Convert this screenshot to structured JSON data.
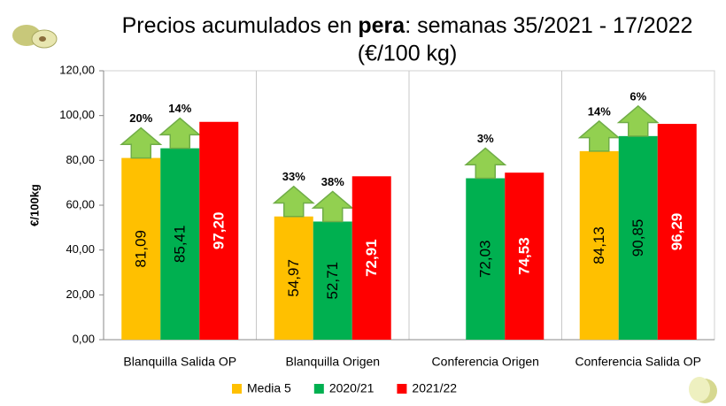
{
  "chart_data": {
    "type": "bar",
    "title": [
      "Precios acumulados en ",
      "pera",
      ": semanas 35/2021 - 17/2022"
    ],
    "subtitle": "(€/100 kg)",
    "y_label": "€/100kg",
    "categories": [
      "Blanquilla Salida OP",
      "Blanquilla Origen",
      "Conferencia Origen",
      "Conferencia Salida OP"
    ],
    "series": [
      {
        "name": "Media 5",
        "color": "#ffc000",
        "values": [
          81.09,
          54.97,
          null,
          84.13
        ],
        "value_labels": [
          "81,09",
          "54,97",
          null,
          "84,13"
        ],
        "change_labels": [
          "20%",
          "33%",
          null,
          "14%"
        ]
      },
      {
        "name": "2020/21",
        "color": "#00b050",
        "values": [
          85.41,
          52.71,
          72.03,
          90.85
        ],
        "value_labels": [
          "85,41",
          "52,71",
          "72,03",
          "90,85"
        ],
        "change_labels": [
          "14%",
          "38%",
          "3%",
          "6%"
        ]
      },
      {
        "name": "2021/22",
        "color": "#ff0000",
        "values": [
          97.2,
          72.91,
          74.53,
          96.29
        ],
        "value_labels": [
          "97,20",
          "72,91",
          "74,53",
          "96,29"
        ]
      }
    ],
    "ylim": [
      0,
      120
    ],
    "yticks": [
      {
        "value": 0,
        "label": "0,00"
      },
      {
        "value": 20,
        "label": "20,00"
      },
      {
        "value": 40,
        "label": "40,00"
      },
      {
        "value": 60,
        "label": "60,00"
      },
      {
        "value": 80,
        "label": "80,00"
      },
      {
        "value": 100,
        "label": "100,00"
      },
      {
        "value": 120,
        "label": "120,00"
      }
    ]
  }
}
